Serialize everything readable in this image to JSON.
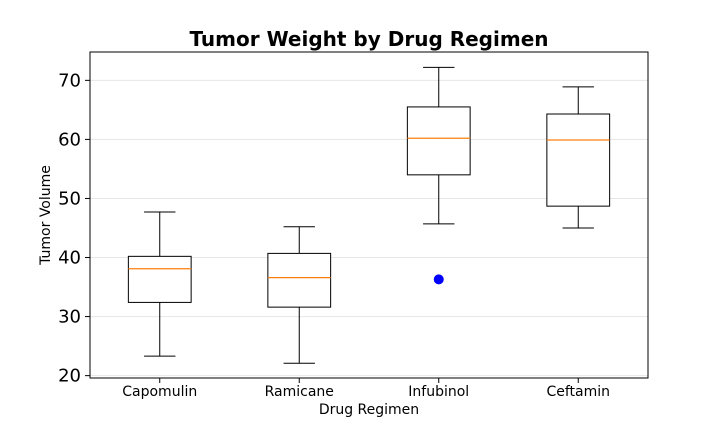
{
  "chart_data": {
    "type": "box",
    "title": "Tumor Weight by Drug Regimen",
    "xlabel": "Drug Regimen",
    "ylabel": "Tumor Volume",
    "categories": [
      "Capomulin",
      "Ramicane",
      "Infubinol",
      "Ceftamin"
    ],
    "boxes": [
      {
        "name": "Capomulin",
        "whislo": 23.3,
        "q1": 32.4,
        "med": 38.1,
        "q3": 40.2,
        "whishi": 47.7,
        "fliers": []
      },
      {
        "name": "Ramicane",
        "whislo": 22.1,
        "q1": 31.6,
        "med": 36.6,
        "q3": 40.7,
        "whishi": 45.2,
        "fliers": []
      },
      {
        "name": "Infubinol",
        "whislo": 45.7,
        "q1": 54.0,
        "med": 60.2,
        "q3": 65.5,
        "whishi": 72.2,
        "fliers": [
          36.3
        ]
      },
      {
        "name": "Ceftamin",
        "whislo": 45.0,
        "q1": 48.7,
        "med": 59.9,
        "q3": 64.3,
        "whishi": 68.9,
        "fliers": []
      }
    ],
    "yticks": [
      20,
      30,
      40,
      50,
      60,
      70
    ],
    "ylim": [
      19.6,
      74.8
    ],
    "grid": true,
    "colors": {
      "box": "#000000",
      "median": "#ff7f0e",
      "flier": "#0000ff",
      "grid": "#e6e6e6"
    }
  }
}
